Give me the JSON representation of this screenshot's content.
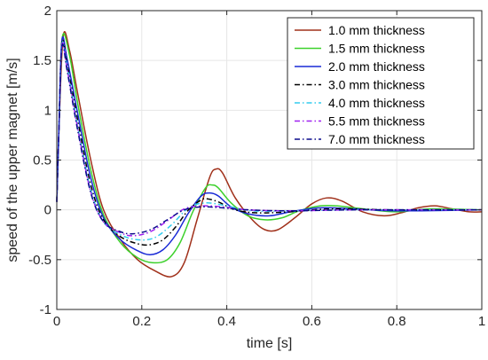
{
  "chart_data": {
    "type": "line",
    "title": "",
    "xlabel": "time [s]",
    "ylabel": "speed of the upper magnet [m/s]",
    "xlim": [
      0,
      1
    ],
    "ylim": [
      -1,
      2
    ],
    "x_ticks": [
      0,
      0.2,
      0.4,
      0.6,
      0.8,
      1
    ],
    "x_tick_labels": [
      "0",
      "0.2",
      "0.4",
      "0.6",
      "0.8",
      "1"
    ],
    "y_ticks": [
      -1,
      -0.5,
      0,
      0.5,
      1,
      1.5,
      2
    ],
    "y_tick_labels": [
      "-1",
      "-0.5",
      "0",
      "0.5",
      "1",
      "1.5",
      "2"
    ],
    "grid": true,
    "legend_position": "top-right",
    "series": [
      {
        "name": "1.0 mm thickness",
        "color": "#a0301a",
        "dash": "solid",
        "x": [
          0,
          0.005,
          0.015,
          0.03,
          0.05,
          0.08,
          0.11,
          0.15,
          0.19,
          0.23,
          0.27,
          0.3,
          0.33,
          0.36,
          0.375,
          0.39,
          0.42,
          0.46,
          0.49,
          0.52,
          0.56,
          0.6,
          0.635,
          0.67,
          0.72,
          0.77,
          0.81,
          0.85,
          0.89,
          0.93,
          0.97,
          1.0
        ],
        "y": [
          0.08,
          0.8,
          1.74,
          1.6,
          1.15,
          0.5,
          0.0,
          -0.3,
          -0.5,
          -0.61,
          -0.67,
          -0.53,
          -0.1,
          0.33,
          0.41,
          0.37,
          0.12,
          -0.1,
          -0.2,
          -0.2,
          -0.08,
          0.06,
          0.12,
          0.09,
          -0.02,
          -0.06,
          -0.03,
          0.02,
          0.04,
          0.01,
          -0.02,
          -0.02
        ]
      },
      {
        "name": "1.5 mm thickness",
        "color": "#3dd12c",
        "dash": "solid",
        "x": [
          0,
          0.005,
          0.013,
          0.03,
          0.05,
          0.08,
          0.11,
          0.15,
          0.19,
          0.225,
          0.26,
          0.29,
          0.32,
          0.35,
          0.365,
          0.38,
          0.41,
          0.45,
          0.49,
          0.53,
          0.57,
          0.62,
          0.66,
          0.72,
          0.8,
          0.88,
          1.0
        ],
        "y": [
          0.08,
          0.8,
          1.73,
          1.55,
          1.05,
          0.4,
          -0.05,
          -0.33,
          -0.48,
          -0.53,
          -0.5,
          -0.33,
          -0.02,
          0.22,
          0.25,
          0.22,
          0.07,
          -0.06,
          -0.1,
          -0.08,
          -0.01,
          0.04,
          0.04,
          0.01,
          -0.02,
          0.01,
          0.0
        ]
      },
      {
        "name": "2.0 mm thickness",
        "color": "#1a2ad6",
        "dash": "solid",
        "x": [
          0,
          0.005,
          0.012,
          0.025,
          0.05,
          0.08,
          0.11,
          0.15,
          0.19,
          0.22,
          0.25,
          0.28,
          0.31,
          0.34,
          0.36,
          0.38,
          0.41,
          0.45,
          0.5,
          0.55,
          0.62,
          0.7,
          0.8,
          1.0
        ],
        "y": [
          0.08,
          0.8,
          1.7,
          1.5,
          0.95,
          0.32,
          -0.08,
          -0.3,
          -0.41,
          -0.45,
          -0.4,
          -0.25,
          -0.03,
          0.14,
          0.17,
          0.14,
          0.03,
          -0.04,
          -0.06,
          -0.02,
          0.02,
          0.01,
          -0.01,
          0.0
        ]
      },
      {
        "name": "3.0 mm thickness",
        "color": "#000000",
        "dash": "dashdot",
        "x": [
          0,
          0.005,
          0.012,
          0.025,
          0.05,
          0.08,
          0.11,
          0.15,
          0.19,
          0.22,
          0.25,
          0.28,
          0.31,
          0.34,
          0.355,
          0.38,
          0.42,
          0.47,
          0.55,
          0.65,
          0.8,
          1.0
        ],
        "y": [
          0.08,
          0.8,
          1.68,
          1.45,
          0.88,
          0.25,
          -0.1,
          -0.27,
          -0.34,
          -0.35,
          -0.3,
          -0.17,
          0.0,
          0.1,
          0.11,
          0.08,
          0.0,
          -0.03,
          -0.02,
          0.01,
          0.0,
          0.0
        ]
      },
      {
        "name": "4.0 mm thickness",
        "color": "#33ccee",
        "dash": "dashdot",
        "x": [
          0,
          0.005,
          0.012,
          0.025,
          0.05,
          0.08,
          0.11,
          0.15,
          0.19,
          0.23,
          0.27,
          0.31,
          0.35,
          0.4,
          0.46,
          0.55,
          0.7,
          1.0
        ],
        "y": [
          0.08,
          0.8,
          1.66,
          1.42,
          0.82,
          0.2,
          -0.12,
          -0.25,
          -0.3,
          -0.28,
          -0.15,
          0.02,
          0.07,
          0.04,
          -0.01,
          -0.01,
          0.0,
          0.0
        ]
      },
      {
        "name": "5.5 mm thickness",
        "color": "#a020f0",
        "dash": "dashdot",
        "x": [
          0,
          0.005,
          0.012,
          0.025,
          0.05,
          0.08,
          0.11,
          0.15,
          0.18,
          0.22,
          0.26,
          0.3,
          0.34,
          0.39,
          0.45,
          0.55,
          0.7,
          1.0
        ],
        "y": [
          0.08,
          0.8,
          1.65,
          1.4,
          0.8,
          0.18,
          -0.12,
          -0.23,
          -0.26,
          -0.22,
          -0.11,
          0.01,
          0.04,
          0.03,
          0.0,
          -0.01,
          0.0,
          0.0
        ]
      },
      {
        "name": "7.0 mm thickness",
        "color": "#0a0a8c",
        "dash": "dashdot",
        "x": [
          0,
          0.005,
          0.012,
          0.025,
          0.05,
          0.08,
          0.11,
          0.15,
          0.18,
          0.22,
          0.26,
          0.3,
          0.34,
          0.39,
          0.45,
          0.55,
          0.7,
          1.0
        ],
        "y": [
          0.08,
          0.8,
          1.64,
          1.38,
          0.78,
          0.17,
          -0.12,
          -0.22,
          -0.24,
          -0.2,
          -0.1,
          0.0,
          0.03,
          0.02,
          0.0,
          -0.01,
          0.0,
          0.0
        ]
      }
    ]
  }
}
